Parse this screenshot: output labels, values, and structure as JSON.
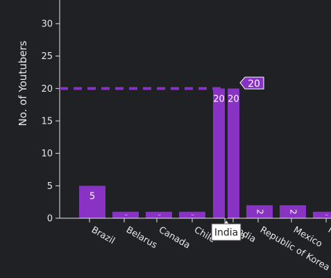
{
  "chart_data": {
    "type": "bar",
    "ylabel": "No. of Youtubers",
    "ylim": [
      0,
      33
    ],
    "yticks": [
      0,
      5,
      10,
      15,
      20,
      25,
      30
    ],
    "bar_color": "#8833c4",
    "categories": [
      "Brazil",
      "Belarus",
      "Canada",
      "Chile",
      "India",
      "India",
      "Republic of Korea",
      "Mexico",
      "N"
    ],
    "values": [
      5,
      1,
      1,
      1,
      20,
      20,
      2,
      2,
      1
    ],
    "data_labels": [
      "5",
      "1",
      "1",
      "1",
      "20",
      "20",
      "2",
      "2",
      "1"
    ],
    "hover": {
      "category": "India",
      "value_label": "20",
      "value": 20,
      "spike_color": "#8833c4"
    }
  }
}
